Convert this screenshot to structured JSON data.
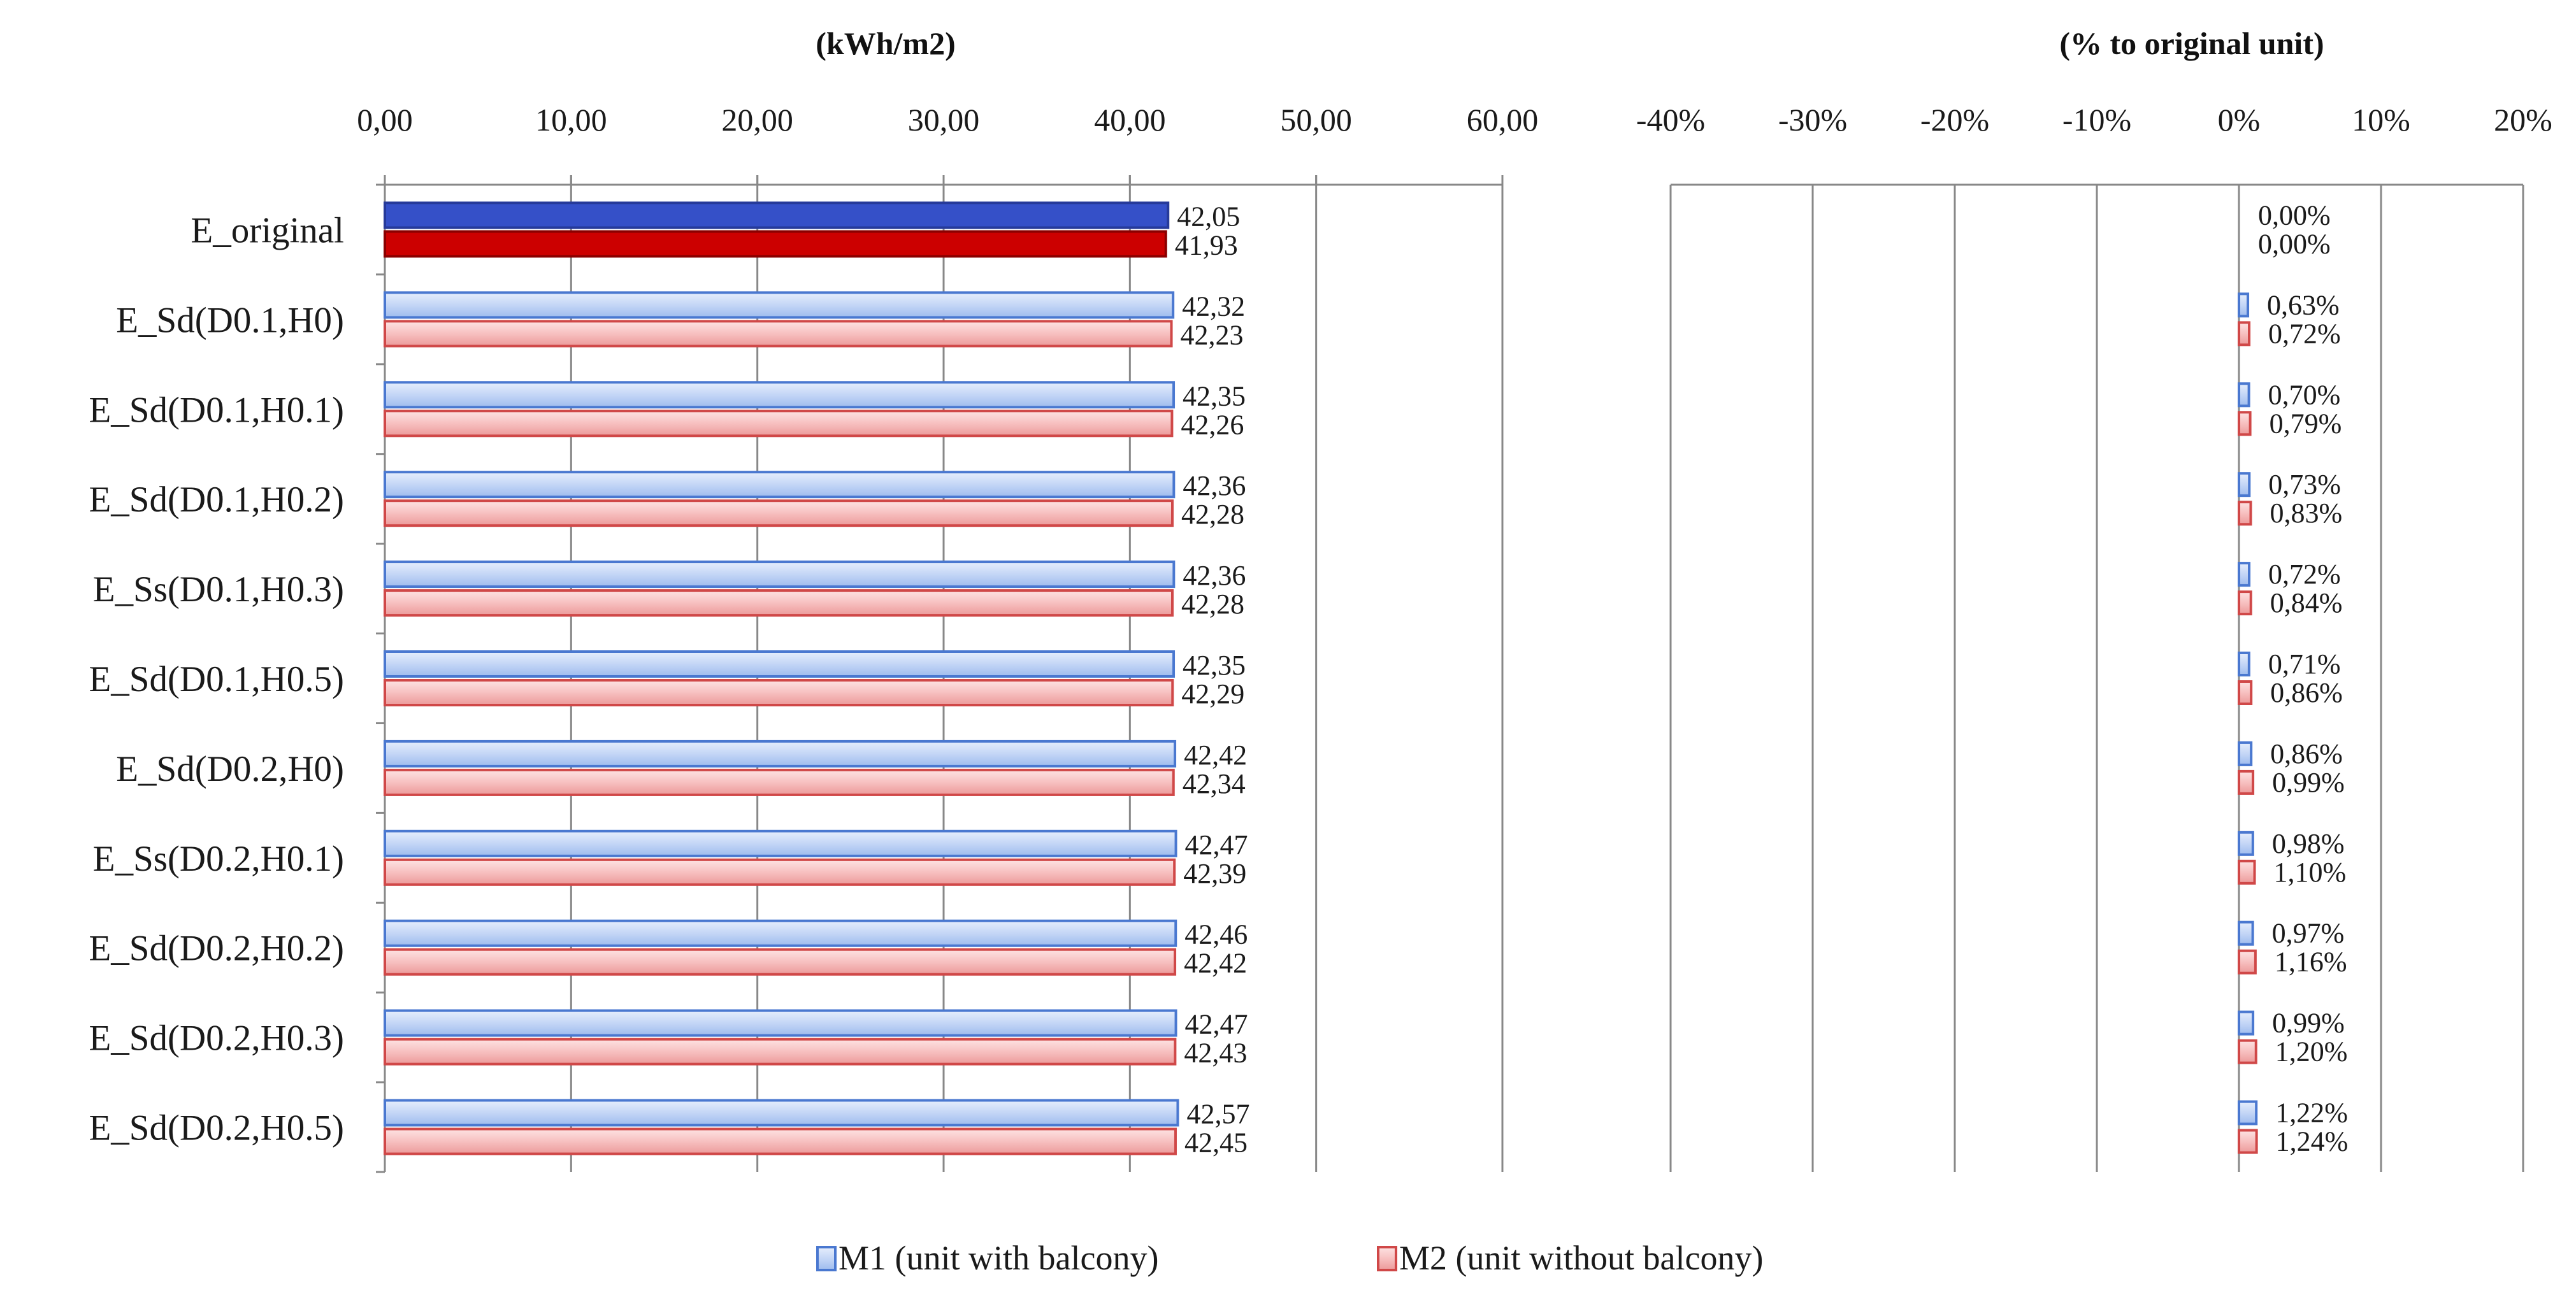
{
  "chart_data": [
    {
      "type": "bar",
      "orientation": "horizontal",
      "title": "(kWh/m2)",
      "xlabel": "",
      "ylabel": "",
      "xlim": [
        0,
        60
      ],
      "ticks": [
        "0,00",
        "10,00",
        "20,00",
        "30,00",
        "40,00",
        "50,00",
        "60,00"
      ],
      "tick_values": [
        0,
        10,
        20,
        30,
        40,
        50,
        60
      ],
      "grid": "vertical",
      "categories": [
        "E_original",
        "E_Sd(D0.1,H0)",
        "E_Sd(D0.1,H0.1)",
        "E_Sd(D0.1,H0.2)",
        "E_Ss(D0.1,H0.3)",
        "E_Sd(D0.1,H0.5)",
        "E_Sd(D0.2,H0)",
        "E_Ss(D0.2,H0.1)",
        "E_Sd(D0.2,H0.2)",
        "E_Sd(D0.2,H0.3)",
        "E_Sd(D0.2,H0.5)"
      ],
      "series": [
        {
          "name": "M1 (unit with balcony)",
          "values": [
            42.05,
            42.32,
            42.35,
            42.36,
            42.36,
            42.35,
            42.42,
            42.47,
            42.46,
            42.47,
            42.57
          ],
          "labels": [
            "42,05",
            "42,32",
            "42,35",
            "42,36",
            "42,36",
            "42,35",
            "42,42",
            "42,47",
            "42,46",
            "42,47",
            "42,57"
          ]
        },
        {
          "name": "M2 (unit without balcony)",
          "values": [
            41.93,
            42.23,
            42.26,
            42.28,
            42.28,
            42.29,
            42.34,
            42.39,
            42.42,
            42.43,
            42.45
          ],
          "labels": [
            "41,93",
            "42,23",
            "42,26",
            "42,28",
            "42,28",
            "42,29",
            "42,34",
            "42,39",
            "42,42",
            "42,43",
            "42,45"
          ]
        }
      ]
    },
    {
      "type": "bar",
      "orientation": "horizontal",
      "title": "(% to original unit)",
      "xlabel": "",
      "ylabel": "",
      "xlim": [
        -40,
        20
      ],
      "ticks": [
        "-40%",
        "-30%",
        "-20%",
        "-10%",
        "0%",
        "10%",
        "20%"
      ],
      "tick_values": [
        -40,
        -30,
        -20,
        -10,
        0,
        10,
        20
      ],
      "grid": "vertical",
      "series": [
        {
          "name": "M1 (unit with balcony)",
          "values": [
            0.0,
            0.63,
            0.7,
            0.73,
            0.72,
            0.71,
            0.86,
            0.98,
            0.97,
            0.99,
            1.22
          ],
          "labels": [
            "0,00%",
            "0,63%",
            "0,70%",
            "0,73%",
            "0,72%",
            "0,71%",
            "0,86%",
            "0,98%",
            "0,97%",
            "0,99%",
            "1,22%"
          ]
        },
        {
          "name": "M2 (unit without balcony)",
          "values": [
            0.0,
            0.72,
            0.79,
            0.83,
            0.84,
            0.86,
            0.99,
            1.1,
            1.16,
            1.2,
            1.24
          ],
          "labels": [
            "0,00%",
            "0,72%",
            "0,79%",
            "0,83%",
            "0,84%",
            "0,86%",
            "0,99%",
            "1,10%",
            "1,16%",
            "1,20%",
            "1,24%"
          ]
        }
      ]
    }
  ],
  "legend": {
    "position": "bottom",
    "items": [
      {
        "label": "M1 (unit with balcony)",
        "fill": "#c9d9f7",
        "stroke": "#4a78d0"
      },
      {
        "label": "M2 (unit without balcony)",
        "fill": "#f8c4c4",
        "stroke": "#d04848"
      }
    ]
  },
  "colors": {
    "m1_original": "#3550c8",
    "m2_original": "#cc0000",
    "m1_light": "#c9d9f7",
    "m1_stroke": "#4a78d0",
    "m2_light": "#f8c4c4",
    "m2_stroke": "#d04848",
    "axis": "#888888"
  }
}
